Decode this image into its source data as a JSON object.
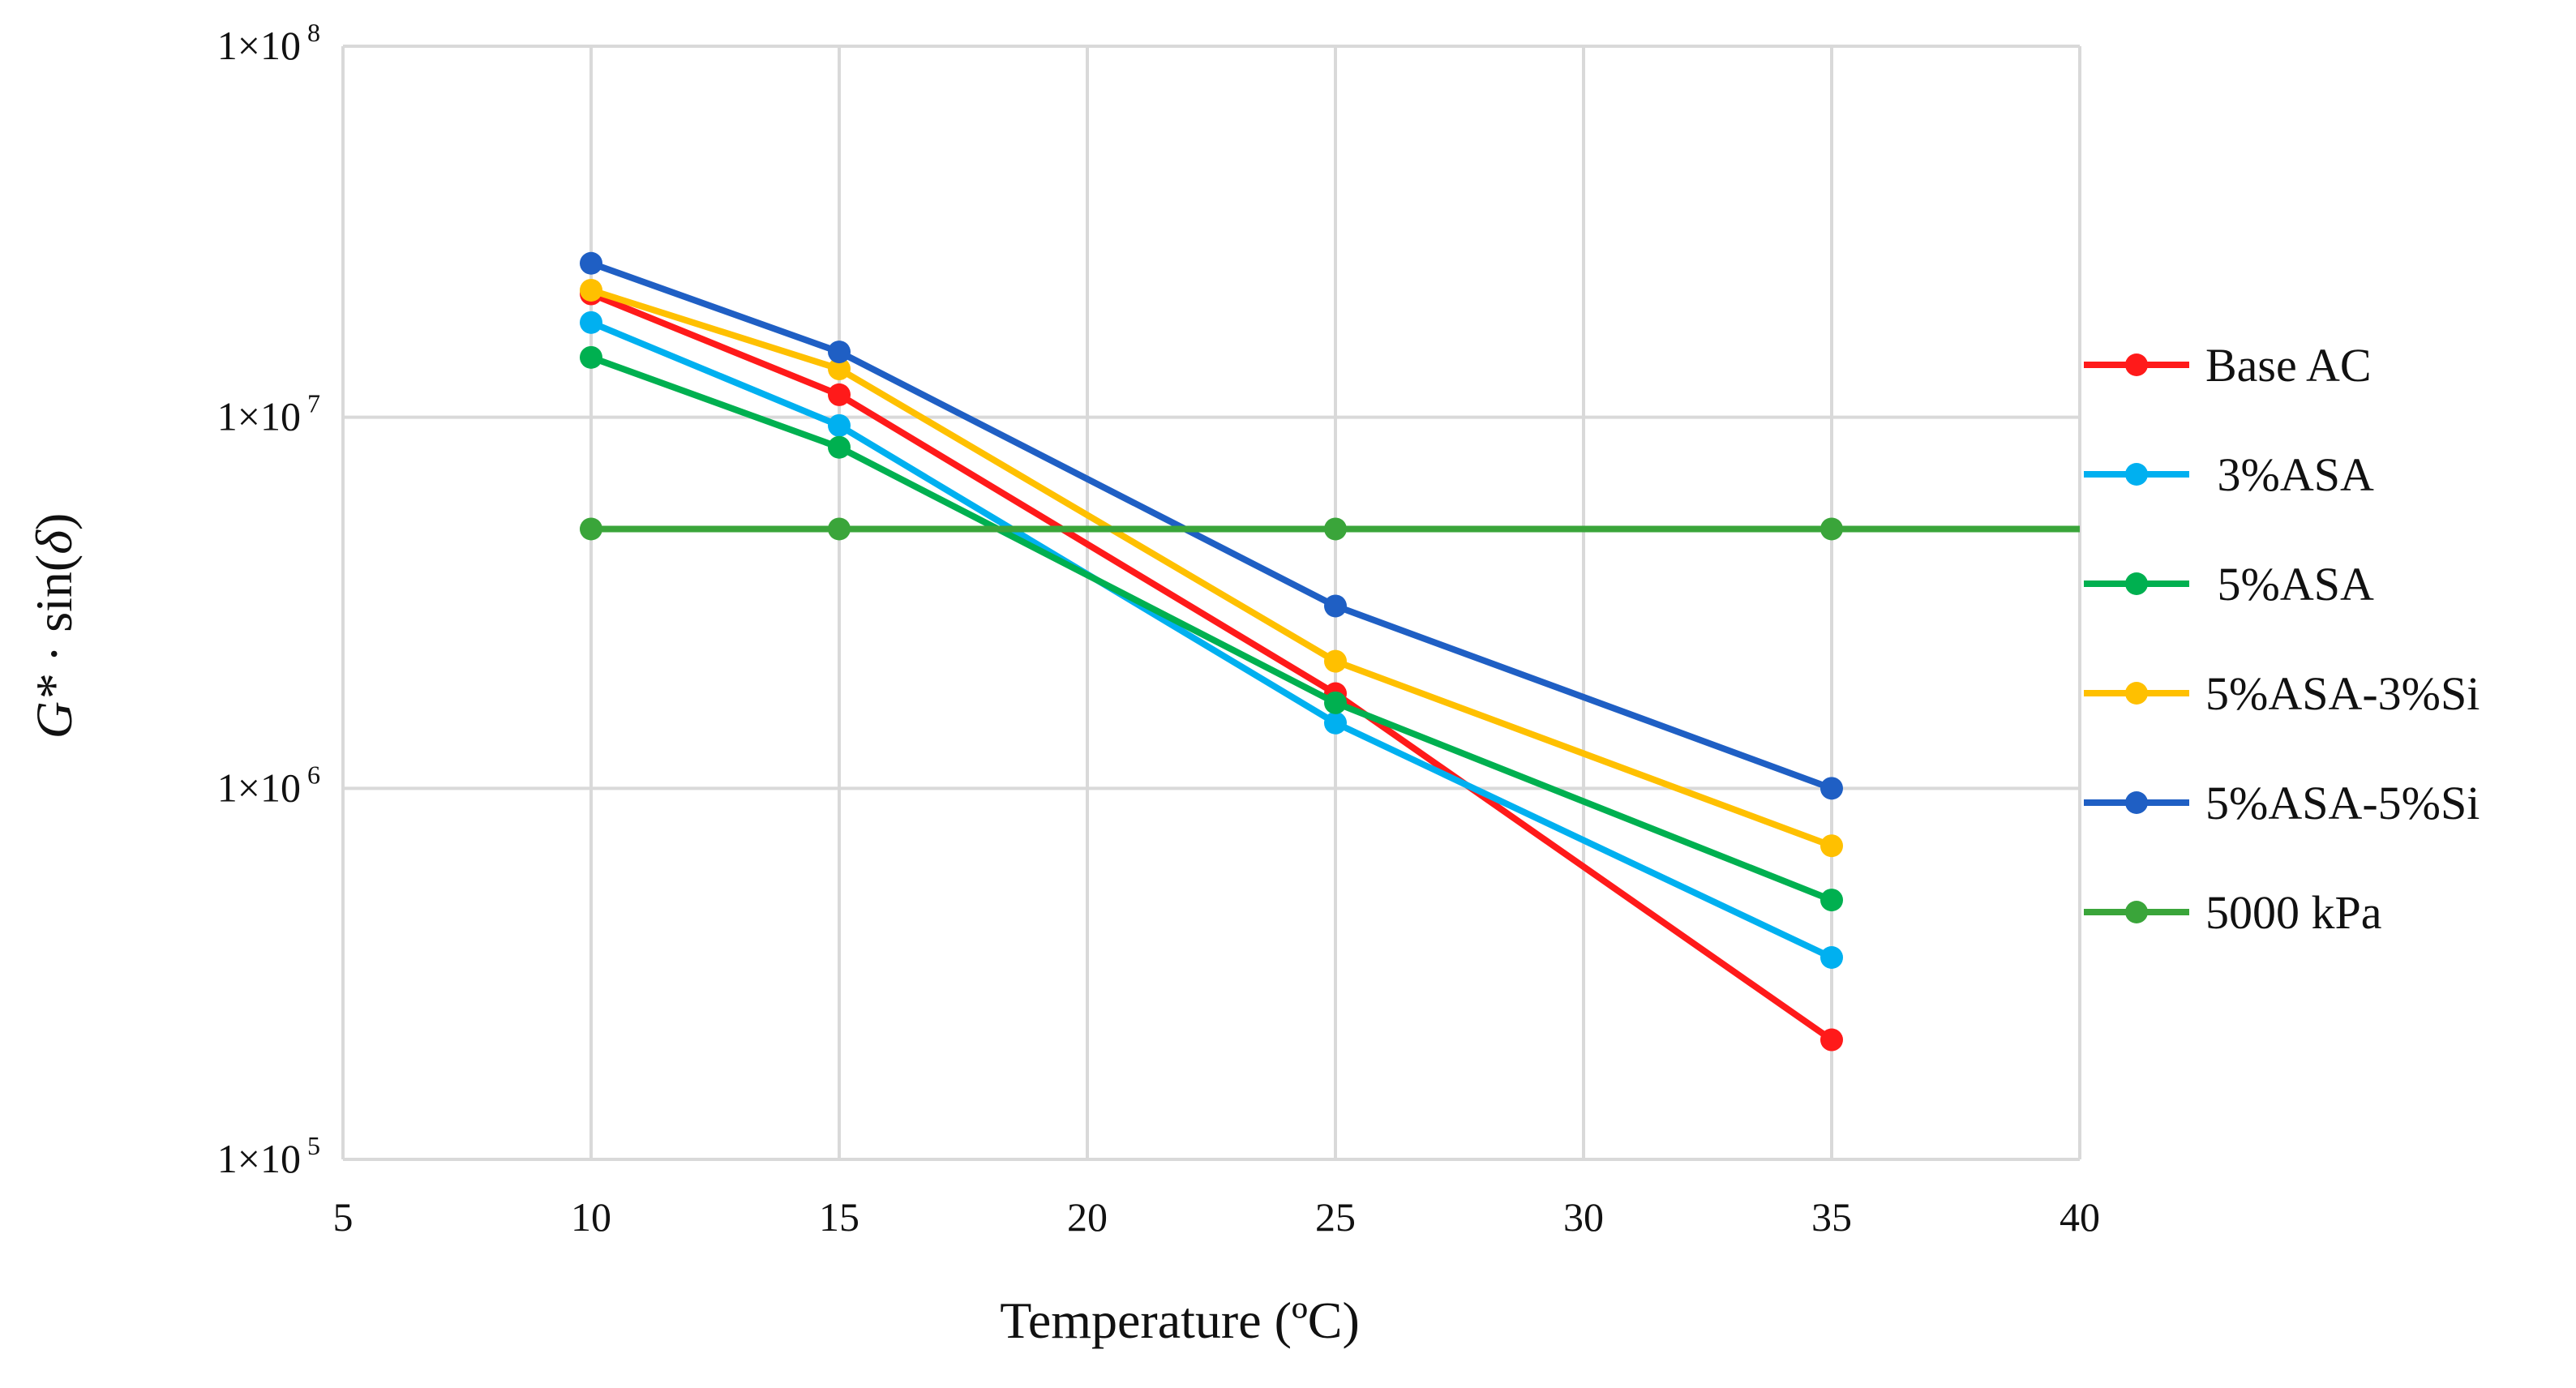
{
  "chart_data": {
    "type": "line",
    "title": "",
    "xlabel": "Temperature (ºC)",
    "ylabel": {
      "base": "G*",
      "mid": " · sin(",
      "sym": "δ",
      "end": ")"
    },
    "xlim": [
      5,
      40
    ],
    "ylim": [
      100000,
      100000000
    ],
    "y_scale": "log",
    "x_ticks": [
      "5",
      "10",
      "15",
      "20",
      "25",
      "30",
      "35",
      "40"
    ],
    "y_ticks": [
      {
        "value": 100000000,
        "mantissa": "1×10",
        "exp": "8"
      },
      {
        "value": 10000000,
        "mantissa": "1×10",
        "exp": "7"
      },
      {
        "value": 1000000,
        "mantissa": "1×10",
        "exp": "6"
      },
      {
        "value": 100000,
        "mantissa": "1×10",
        "exp": "5"
      }
    ],
    "grid": true,
    "legend_position": "right",
    "series": [
      {
        "name": "Base AC",
        "color": "#ff1a1a",
        "x": [
          10,
          15,
          25,
          35
        ],
        "y": [
          21500000,
          11500000,
          1800000,
          210000
        ]
      },
      {
        "name": " 3%ASA",
        "color": "#00b0f0",
        "x": [
          10,
          15,
          25,
          35
        ],
        "y": [
          18000000,
          9500000,
          1500000,
          350000
        ]
      },
      {
        "name": " 5%ASA",
        "color": "#00b050",
        "x": [
          10,
          15,
          25,
          35
        ],
        "y": [
          14500000,
          8300000,
          1700000,
          500000
        ]
      },
      {
        "name": "5%ASA-3%Si",
        "color": "#ffc000",
        "x": [
          10,
          15,
          25,
          35
        ],
        "y": [
          22000000,
          13500000,
          2200000,
          700000
        ]
      },
      {
        "name": "5%ASA-5%Si",
        "color": "#1f5fc4",
        "x": [
          10,
          15,
          25,
          35
        ],
        "y": [
          26000000,
          15000000,
          3100000,
          1000000
        ]
      },
      {
        "name": "5000 kPa",
        "color": "#3aa53a",
        "x": [
          10,
          15,
          25,
          35
        ],
        "y": [
          5000000,
          5000000,
          5000000,
          5000000
        ],
        "line_to_xmax": true
      }
    ]
  }
}
